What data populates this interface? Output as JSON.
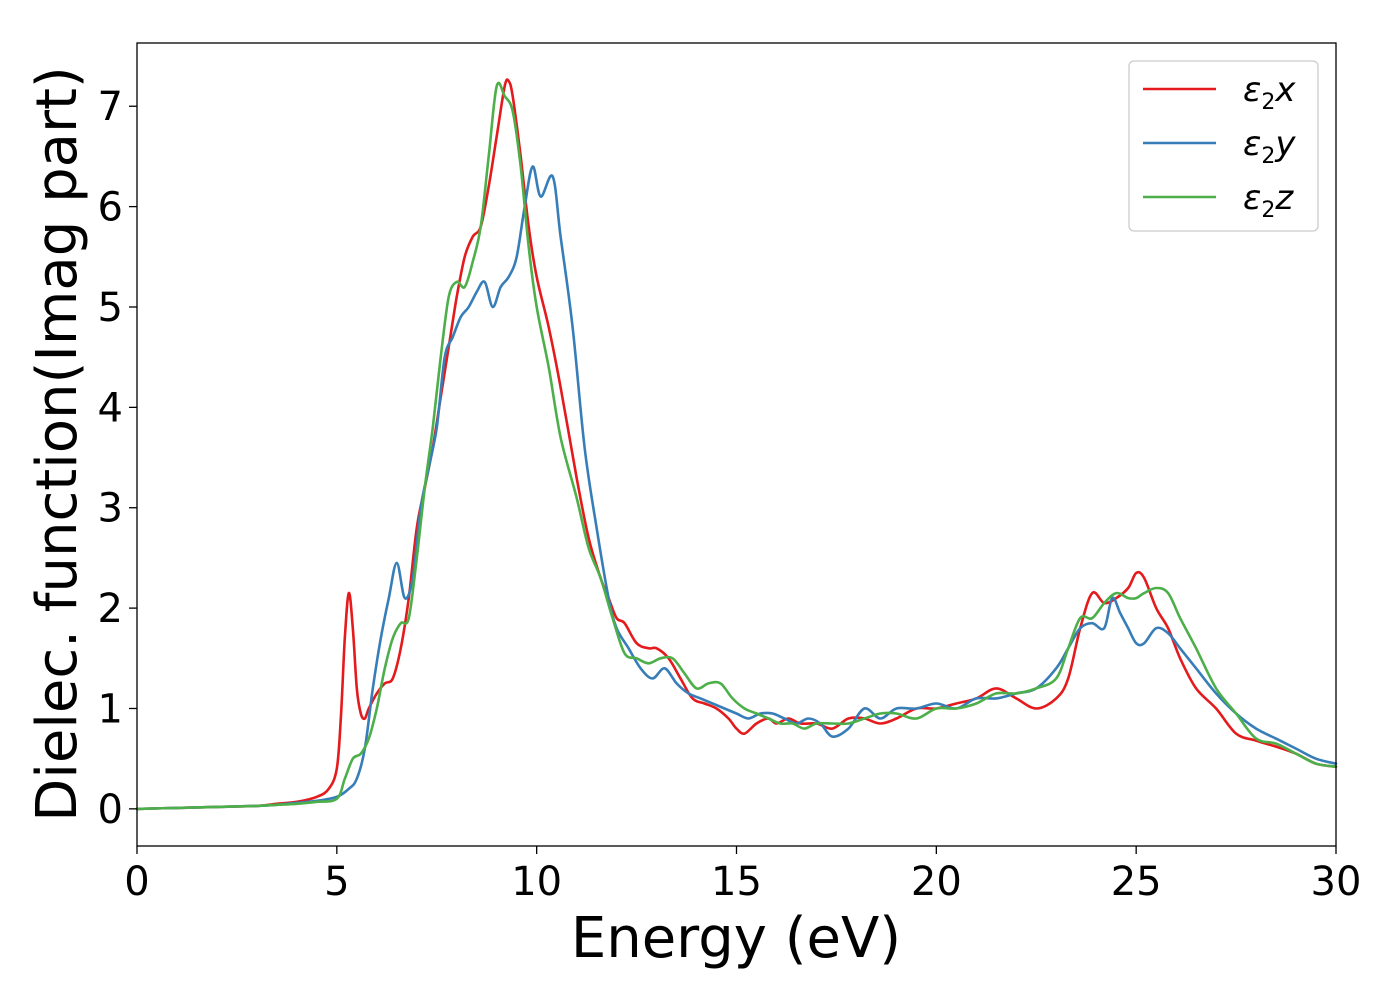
{
  "chart_data": {
    "type": "line",
    "xlabel": "Energy (eV)",
    "ylabel": "Dielec. function(Imag part)",
    "xlim": [
      0,
      30
    ],
    "ylim": [
      -0.37,
      7.63
    ],
    "xticks": [
      "0",
      "5",
      "10",
      "15",
      "20",
      "25",
      "30"
    ],
    "yticks": [
      "0",
      "1",
      "2",
      "3",
      "4",
      "5",
      "6",
      "7"
    ],
    "legend_position": "top-right",
    "grid": false,
    "series": [
      {
        "name": "ε₂x",
        "legend_base": "ε",
        "legend_sub": "2",
        "legend_var": "x",
        "color": "#e41a1c",
        "x": [
          0,
          1,
          2,
          3,
          3.5,
          4,
          4.5,
          4.8,
          5.0,
          5.1,
          5.2,
          5.3,
          5.4,
          5.5,
          5.6,
          5.7,
          5.8,
          6.0,
          6.2,
          6.4,
          6.6,
          6.8,
          7.0,
          7.2,
          7.4,
          7.6,
          7.8,
          8.0,
          8.2,
          8.4,
          8.6,
          8.8,
          9.0,
          9.2,
          9.3,
          9.4,
          9.6,
          9.8,
          10.0,
          10.3,
          10.6,
          11.0,
          11.3,
          11.6,
          11.8,
          12.0,
          12.2,
          12.5,
          12.8,
          13.0,
          13.3,
          13.6,
          13.9,
          14.2,
          14.5,
          14.8,
          15.0,
          15.2,
          15.5,
          15.8,
          16.0,
          16.3,
          16.6,
          17.0,
          17.4,
          17.8,
          18.2,
          18.6,
          19.0,
          19.5,
          20.0,
          20.5,
          21.0,
          21.5,
          22.0,
          22.5,
          23.0,
          23.3,
          23.6,
          23.9,
          24.2,
          24.5,
          24.8,
          25.0,
          25.2,
          25.5,
          25.8,
          26.1,
          26.5,
          27.0,
          27.5,
          28.0,
          28.5,
          29.0,
          29.5,
          30.0
        ],
        "values": [
          0,
          0.01,
          0.02,
          0.03,
          0.05,
          0.07,
          0.12,
          0.2,
          0.4,
          0.9,
          1.7,
          2.15,
          1.8,
          1.2,
          0.95,
          0.9,
          1.0,
          1.15,
          1.25,
          1.3,
          1.6,
          2.1,
          2.8,
          3.2,
          3.6,
          4.1,
          4.6,
          5.1,
          5.5,
          5.7,
          5.8,
          6.2,
          6.7,
          7.2,
          7.25,
          7.1,
          6.5,
          5.8,
          5.3,
          4.8,
          4.2,
          3.3,
          2.7,
          2.3,
          2.1,
          1.9,
          1.85,
          1.65,
          1.6,
          1.6,
          1.5,
          1.3,
          1.1,
          1.05,
          1.0,
          0.9,
          0.8,
          0.75,
          0.85,
          0.9,
          0.85,
          0.9,
          0.85,
          0.85,
          0.8,
          0.9,
          0.9,
          0.85,
          0.9,
          1.0,
          1.0,
          1.05,
          1.1,
          1.2,
          1.1,
          1.0,
          1.1,
          1.3,
          1.8,
          2.15,
          2.05,
          2.1,
          2.2,
          2.35,
          2.3,
          2.0,
          1.8,
          1.5,
          1.2,
          1.0,
          0.75,
          0.68,
          0.62,
          0.55,
          0.45,
          0.42
        ]
      },
      {
        "name": "ε₂y",
        "legend_base": "ε",
        "legend_sub": "2",
        "legend_var": "y",
        "color": "#377eb8",
        "x": [
          0,
          1,
          2,
          3,
          3.5,
          4,
          4.5,
          5.0,
          5.3,
          5.5,
          5.7,
          5.9,
          6.1,
          6.3,
          6.5,
          6.7,
          6.9,
          7.1,
          7.3,
          7.5,
          7.7,
          7.9,
          8.1,
          8.3,
          8.5,
          8.7,
          8.9,
          9.1,
          9.3,
          9.5,
          9.7,
          9.9,
          10.1,
          10.4,
          10.6,
          10.9,
          11.2,
          11.5,
          11.8,
          12.0,
          12.3,
          12.6,
          12.9,
          13.2,
          13.5,
          13.8,
          14.1,
          14.4,
          14.7,
          15.0,
          15.3,
          15.6,
          15.9,
          16.2,
          16.5,
          16.8,
          17.1,
          17.4,
          17.8,
          18.2,
          18.6,
          19.0,
          19.5,
          20.0,
          20.5,
          21.0,
          21.5,
          22.0,
          22.5,
          23.0,
          23.3,
          23.6,
          23.9,
          24.2,
          24.4,
          24.6,
          24.8,
          25.0,
          25.2,
          25.5,
          25.8,
          26.1,
          26.5,
          27.0,
          27.5,
          28.0,
          28.5,
          29.0,
          29.5,
          30.0
        ],
        "values": [
          0,
          0.01,
          0.02,
          0.03,
          0.04,
          0.06,
          0.08,
          0.12,
          0.2,
          0.3,
          0.6,
          1.2,
          1.7,
          2.1,
          2.45,
          2.1,
          2.3,
          3.0,
          3.4,
          3.8,
          4.5,
          4.7,
          4.9,
          5.0,
          5.15,
          5.25,
          5.0,
          5.2,
          5.3,
          5.5,
          6.0,
          6.4,
          6.1,
          6.3,
          5.7,
          4.8,
          3.6,
          2.8,
          2.1,
          1.8,
          1.6,
          1.4,
          1.3,
          1.4,
          1.25,
          1.15,
          1.1,
          1.05,
          1.0,
          0.95,
          0.9,
          0.95,
          0.95,
          0.9,
          0.85,
          0.9,
          0.85,
          0.72,
          0.8,
          1.0,
          0.9,
          1.0,
          1.0,
          1.05,
          1.0,
          1.1,
          1.1,
          1.15,
          1.2,
          1.4,
          1.6,
          1.8,
          1.85,
          1.8,
          2.1,
          1.95,
          1.8,
          1.65,
          1.65,
          1.8,
          1.75,
          1.6,
          1.4,
          1.15,
          0.95,
          0.8,
          0.7,
          0.6,
          0.5,
          0.45
        ]
      },
      {
        "name": "ε₂z",
        "legend_base": "ε",
        "legend_sub": "2",
        "legend_var": "z",
        "color": "#4daf4a",
        "x": [
          0,
          1,
          2,
          3,
          3.5,
          4,
          4.5,
          5.0,
          5.2,
          5.4,
          5.6,
          5.8,
          6.0,
          6.2,
          6.4,
          6.6,
          6.8,
          7.0,
          7.2,
          7.4,
          7.6,
          7.8,
          8.0,
          8.2,
          8.4,
          8.6,
          8.8,
          9.0,
          9.2,
          9.4,
          9.6,
          9.8,
          10.0,
          10.3,
          10.6,
          11.0,
          11.3,
          11.6,
          11.9,
          12.2,
          12.5,
          12.8,
          13.1,
          13.4,
          13.7,
          14.0,
          14.3,
          14.6,
          14.9,
          15.2,
          15.5,
          15.8,
          16.1,
          16.4,
          16.7,
          17.0,
          17.4,
          17.8,
          18.2,
          18.6,
          19.0,
          19.5,
          20.0,
          20.5,
          21.0,
          21.5,
          22.0,
          22.5,
          23.0,
          23.3,
          23.6,
          23.9,
          24.2,
          24.5,
          24.8,
          25.0,
          25.2,
          25.5,
          25.8,
          26.1,
          26.5,
          27.0,
          27.5,
          28.0,
          28.5,
          29.0,
          29.5,
          30.0
        ],
        "values": [
          0,
          0.01,
          0.02,
          0.03,
          0.04,
          0.05,
          0.07,
          0.1,
          0.3,
          0.5,
          0.55,
          0.7,
          1.0,
          1.4,
          1.7,
          1.85,
          1.9,
          2.5,
          3.2,
          3.8,
          4.5,
          5.1,
          5.25,
          5.2,
          5.45,
          5.8,
          6.5,
          7.2,
          7.1,
          6.95,
          6.4,
          5.6,
          5.0,
          4.4,
          3.7,
          3.1,
          2.6,
          2.3,
          1.9,
          1.55,
          1.5,
          1.45,
          1.5,
          1.5,
          1.35,
          1.2,
          1.25,
          1.25,
          1.1,
          1.0,
          0.95,
          0.9,
          0.85,
          0.85,
          0.8,
          0.85,
          0.85,
          0.85,
          0.9,
          0.95,
          0.95,
          0.9,
          1.0,
          1.0,
          1.05,
          1.15,
          1.15,
          1.2,
          1.3,
          1.6,
          1.9,
          1.9,
          2.05,
          2.15,
          2.1,
          2.1,
          2.15,
          2.2,
          2.15,
          1.9,
          1.6,
          1.2,
          0.95,
          0.7,
          0.65,
          0.55,
          0.45,
          0.42
        ]
      }
    ]
  }
}
